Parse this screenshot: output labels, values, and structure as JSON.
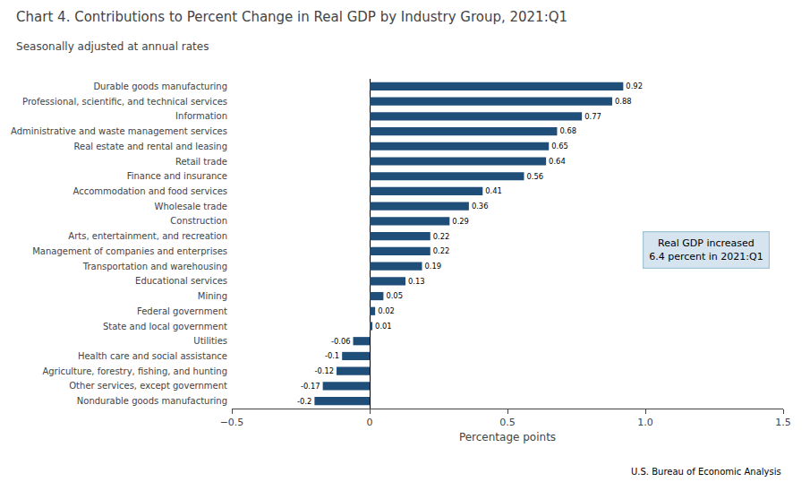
{
  "chart_data": {
    "type": "bar",
    "orientation": "horizontal",
    "title": "Chart 4. Contributions to Percent Change in Real GDP by Industry Group, 2021:Q1",
    "subtitle": "Seasonally adjusted at annual rates",
    "xlabel": "Percentage points",
    "footer": "U.S. Bureau of Economic Analysis",
    "annotation": "Real GDP increased\n6.4 percent in 2021:Q1",
    "categories": [
      "Nondurable goods manufacturing",
      "Other services, except government",
      "Agriculture, forestry, fishing, and hunting",
      "Health care and social assistance",
      "Utilities",
      "State and local government",
      "Federal government",
      "Mining",
      "Educational services",
      "Transportation and warehousing",
      "Management of companies and enterprises",
      "Arts, entertainment, and recreation",
      "Construction",
      "Wholesale trade",
      "Accommodation and food services",
      "Finance and insurance",
      "Retail trade",
      "Real estate and rental and leasing",
      "Administrative and waste management services",
      "Information",
      "Professional, scientific, and technical services",
      "Durable goods manufacturing"
    ],
    "values": [
      -0.2,
      -0.17,
      -0.12,
      -0.1,
      -0.06,
      0.01,
      0.02,
      0.05,
      0.13,
      0.19,
      0.22,
      0.22,
      0.29,
      0.36,
      0.41,
      0.56,
      0.64,
      0.65,
      0.68,
      0.77,
      0.88,
      0.92
    ],
    "color": "#1F4E79",
    "xlim": [
      -0.5,
      1.5
    ],
    "xticks": [
      {
        "value": -0.5,
        "label": "−0.5"
      },
      0,
      0.5,
      {
        "value": 1.0,
        "label": "1.0"
      },
      1.5
    ],
    "data_labels": true,
    "grid": false
  }
}
